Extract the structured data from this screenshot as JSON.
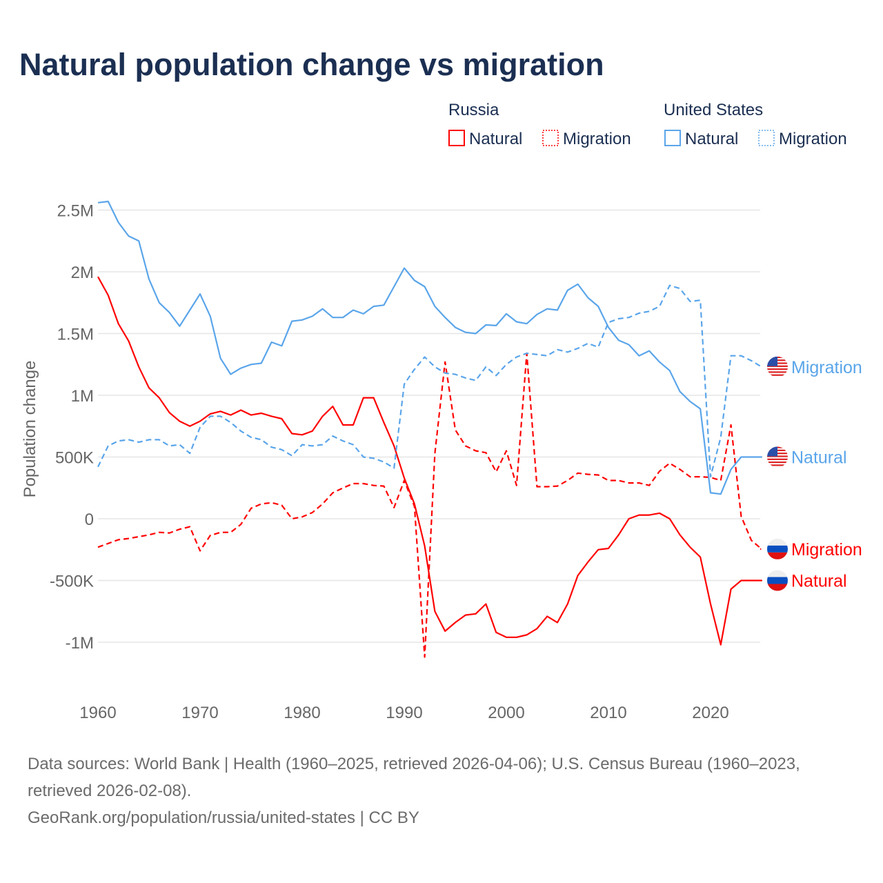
{
  "title": "Natural population change vs migration",
  "legend": {
    "groups": [
      {
        "name": "Russia",
        "color": "#ff0000",
        "items": [
          "Natural",
          "Migration"
        ]
      },
      {
        "name": "United States",
        "color": "#5aa5ea",
        "items": [
          "Natural",
          "Migration"
        ]
      }
    ]
  },
  "footer": {
    "sources": "Data sources: World Bank | Health (1960–2025, retrieved 2026-04-06); U.S. Census Bureau (1960–2023, retrieved 2026-02-08).",
    "attribution": "GeoRank.org/population/russia/united-states | CC BY"
  },
  "chart_data": {
    "type": "line",
    "title": "Natural population change vs migration",
    "xlabel": "",
    "ylabel": "Population change",
    "xlim": [
      1960,
      2025
    ],
    "ylim": [
      -1250000,
      2600000
    ],
    "grid": true,
    "legend_position": "top-right",
    "x_ticks": [
      1960,
      1970,
      1980,
      1990,
      2000,
      2010,
      2020
    ],
    "y_ticks": [
      {
        "value": 2500000,
        "label": "2.5M"
      },
      {
        "value": 2000000,
        "label": "2M"
      },
      {
        "value": 1500000,
        "label": "1.5M"
      },
      {
        "value": 1000000,
        "label": "1M"
      },
      {
        "value": 500000,
        "label": "500K"
      },
      {
        "value": 0,
        "label": "0"
      },
      {
        "value": -500000,
        "label": "-500K"
      },
      {
        "value": -1000000,
        "label": "-1M"
      }
    ],
    "x_start": 1960,
    "series": [
      {
        "name": "Russia Natural",
        "country": "russia",
        "kind": "Natural",
        "end_label": "Natural",
        "color": "#ff0000",
        "dashed": false,
        "values": [
          1.96,
          1.81,
          1.58,
          1.44,
          1.23,
          1.06,
          0.98,
          0.86,
          0.79,
          0.75,
          0.79,
          0.85,
          0.87,
          0.84,
          0.88,
          0.84,
          0.855,
          0.83,
          0.81,
          0.69,
          0.68,
          0.71,
          0.83,
          0.91,
          0.76,
          0.76,
          0.98,
          0.98,
          0.78,
          0.59,
          0.33,
          0.12,
          -0.22,
          -0.75,
          -0.91,
          -0.84,
          -0.78,
          -0.77,
          -0.69,
          -0.92,
          -0.96,
          -0.96,
          -0.94,
          -0.89,
          -0.79,
          -0.84,
          -0.69,
          -0.46,
          -0.35,
          -0.25,
          -0.24,
          -0.13,
          0.0,
          0.03,
          0.03,
          0.045,
          0.0,
          -0.13,
          -0.23,
          -0.31,
          -0.69,
          -1.02,
          -0.57,
          -0.5,
          -0.5,
          -0.5
        ]
      },
      {
        "name": "Russia Migration",
        "country": "russia",
        "kind": "Migration",
        "end_label": "Migration",
        "color": "#ff0000",
        "dashed": true,
        "values": [
          -0.23,
          -0.2,
          -0.17,
          -0.16,
          -0.145,
          -0.13,
          -0.11,
          -0.115,
          -0.085,
          -0.065,
          -0.26,
          -0.135,
          -0.11,
          -0.11,
          -0.045,
          0.085,
          0.12,
          0.13,
          0.11,
          0.0,
          0.015,
          0.05,
          0.12,
          0.21,
          0.25,
          0.285,
          0.285,
          0.27,
          0.265,
          0.09,
          0.31,
          0.1,
          -1.12,
          0.53,
          1.27,
          0.72,
          0.59,
          0.55,
          0.535,
          0.38,
          0.55,
          0.27,
          1.34,
          0.26,
          0.26,
          0.265,
          0.31,
          0.37,
          0.36,
          0.355,
          0.31,
          0.31,
          0.29,
          0.29,
          0.27,
          0.385,
          0.45,
          0.4,
          0.34,
          0.34,
          0.335,
          0.31,
          0.76,
          0.02,
          -0.175,
          -0.245
        ]
      },
      {
        "name": "United States Natural",
        "country": "us",
        "kind": "Natural",
        "end_label": "Natural",
        "color": "#5aa5ea",
        "dashed": false,
        "values": [
          2.56,
          2.57,
          2.4,
          2.29,
          2.25,
          1.94,
          1.75,
          1.67,
          1.56,
          1.69,
          1.82,
          1.64,
          1.3,
          1.17,
          1.22,
          1.25,
          1.26,
          1.43,
          1.4,
          1.6,
          1.61,
          1.64,
          1.7,
          1.63,
          1.63,
          1.69,
          1.66,
          1.72,
          1.73,
          1.88,
          2.03,
          1.93,
          1.88,
          1.72,
          1.63,
          1.55,
          1.51,
          1.5,
          1.57,
          1.565,
          1.66,
          1.595,
          1.58,
          1.655,
          1.7,
          1.69,
          1.85,
          1.9,
          1.79,
          1.72,
          1.55,
          1.445,
          1.41,
          1.32,
          1.36,
          1.27,
          1.2,
          1.03,
          0.95,
          0.89,
          0.21,
          0.2,
          0.4,
          0.5,
          0.5,
          0.5
        ]
      },
      {
        "name": "United States Migration",
        "country": "us",
        "kind": "Migration",
        "end_label": "Migration",
        "color": "#5aa5ea",
        "dashed": true,
        "values": [
          0.42,
          0.59,
          0.63,
          0.64,
          0.62,
          0.64,
          0.64,
          0.59,
          0.6,
          0.53,
          0.74,
          0.83,
          0.83,
          0.78,
          0.71,
          0.66,
          0.64,
          0.58,
          0.56,
          0.51,
          0.6,
          0.59,
          0.6,
          0.67,
          0.63,
          0.6,
          0.5,
          0.49,
          0.46,
          0.41,
          1.09,
          1.21,
          1.31,
          1.23,
          1.18,
          1.17,
          1.14,
          1.12,
          1.23,
          1.16,
          1.25,
          1.31,
          1.34,
          1.33,
          1.32,
          1.37,
          1.35,
          1.38,
          1.42,
          1.39,
          1.59,
          1.62,
          1.63,
          1.665,
          1.68,
          1.72,
          1.89,
          1.865,
          1.76,
          1.77,
          0.34,
          0.66,
          1.32,
          1.32,
          1.28,
          1.23
        ]
      }
    ],
    "value_unit": "millions"
  }
}
